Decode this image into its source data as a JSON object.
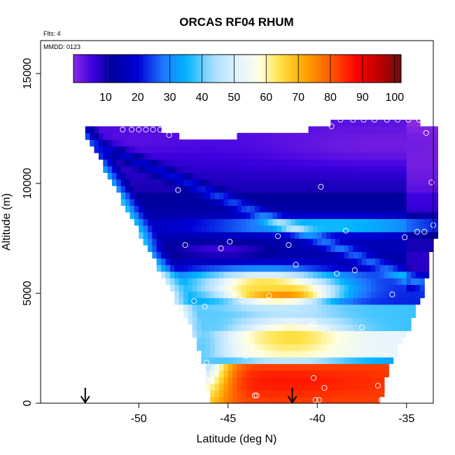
{
  "chart_data": {
    "type": "heatmap",
    "title": "ORCAS RF04 RHUM",
    "xlabel": "Latitude (deg N)",
    "ylabel": "Altitude (m)",
    "xlim": [
      -55.5,
      -33.5
    ],
    "ylim": [
      0,
      16500
    ],
    "x_ticks": [
      -50,
      -45,
      -40,
      -35
    ],
    "x_tick_labels": [
      "-50",
      "-45",
      "-40",
      "-35"
    ],
    "y_ticks": [
      0,
      5000,
      10000,
      15000
    ],
    "y_tick_labels": [
      "0",
      "5000",
      "10000",
      "15000"
    ],
    "annotations": {
      "flights": "Flts: 4",
      "date": "MMDD: 0123"
    },
    "colorbar": {
      "range": [
        0,
        102
      ],
      "ticks": [
        10,
        20,
        30,
        40,
        50,
        60,
        70,
        80,
        90,
        100
      ],
      "tick_labels": [
        "10",
        "20",
        "30",
        "40",
        "50",
        "60",
        "70",
        "80",
        "90",
        "100"
      ],
      "stops": [
        {
          "v": 0,
          "c": "#8a2be2"
        },
        {
          "v": 6,
          "c": "#3d00e0"
        },
        {
          "v": 12,
          "c": "#00009c"
        },
        {
          "v": 20,
          "c": "#0000d8"
        },
        {
          "v": 28,
          "c": "#1e78ff"
        },
        {
          "v": 35,
          "c": "#00b4ff"
        },
        {
          "v": 44,
          "c": "#aee0ff"
        },
        {
          "v": 52,
          "c": "#e6f4ff"
        },
        {
          "v": 58,
          "c": "#ffffe0"
        },
        {
          "v": 64,
          "c": "#ffe34a"
        },
        {
          "v": 72,
          "c": "#ffa500"
        },
        {
          "v": 80,
          "c": "#ff5a00"
        },
        {
          "v": 88,
          "c": "#ff0000"
        },
        {
          "v": 95,
          "c": "#c00000"
        },
        {
          "v": 102,
          "c": "#6b0f0f"
        }
      ]
    },
    "boundary": {
      "lat": [
        -53.0,
        -52.0,
        -51.0,
        -50.0,
        -49.0,
        -48.0,
        -47.0,
        -46.5,
        -46.0,
        -45.0,
        -44.0,
        -43.0,
        -42.0,
        -41.0,
        -40.0,
        -39.0,
        -38.0,
        -37.0,
        -36.5,
        -36.0,
        -35.0,
        -34.0,
        -33.5
      ],
      "top": [
        12500,
        12500,
        12500,
        12500,
        12500,
        12200,
        12000,
        12000,
        12000,
        12100,
        12200,
        12300,
        12300,
        12400,
        12500,
        12800,
        12900,
        12900,
        12900,
        12900,
        12900,
        12700,
        12600
      ],
      "bottom": [
        12300,
        10800,
        9300,
        7800,
        6300,
        4800,
        3300,
        2300,
        0,
        0,
        0,
        0,
        0,
        0,
        0,
        0,
        0,
        0,
        0,
        1600,
        3200,
        5200,
        7500
      ]
    },
    "features": [
      {
        "lat": -42.2,
        "alt": 5000,
        "w_lat": 2.6,
        "w_alt": 420,
        "v": 90
      },
      {
        "lat": -43.0,
        "alt": 5400,
        "w_lat": 4.0,
        "w_alt": 700,
        "v": 65
      },
      {
        "lat": -41.5,
        "alt": 3000,
        "w_lat": 3.0,
        "w_alt": 900,
        "v": 65
      },
      {
        "lat": -42.0,
        "alt": 1000,
        "w_lat": 6.0,
        "w_alt": 700,
        "v": 86
      },
      {
        "lat": -39.0,
        "alt": 8100,
        "w_lat": 7.0,
        "w_alt": 350,
        "v": 40
      },
      {
        "lat": -46.5,
        "alt": 2500,
        "w_lat": 1.5,
        "w_alt": 2500,
        "v": 40
      },
      {
        "lat": -36.0,
        "alt": 11800,
        "w_lat": 8.0,
        "w_alt": 1000,
        "v": 2
      },
      {
        "lat": -50.0,
        "alt": 12000,
        "w_lat": 4.0,
        "w_alt": 700,
        "v": 4
      },
      {
        "lat": -45.5,
        "alt": 7000,
        "w_lat": 3.0,
        "w_alt": 400,
        "v": 6
      }
    ],
    "observations": [
      {
        "lat": -50.9,
        "alt": 12450
      },
      {
        "lat": -50.4,
        "alt": 12450
      },
      {
        "lat": -50.0,
        "alt": 12450
      },
      {
        "lat": -49.6,
        "alt": 12450
      },
      {
        "lat": -49.2,
        "alt": 12450
      },
      {
        "lat": -48.8,
        "alt": 12450
      },
      {
        "lat": -48.4,
        "alt": 12550
      },
      {
        "lat": -48.3,
        "alt": 12200
      },
      {
        "lat": -47.8,
        "alt": 9700
      },
      {
        "lat": -47.4,
        "alt": 7200
      },
      {
        "lat": -46.9,
        "alt": 4650
      },
      {
        "lat": -46.3,
        "alt": 4400
      },
      {
        "lat": -45.4,
        "alt": 7050
      },
      {
        "lat": -44.9,
        "alt": 7350
      },
      {
        "lat": -44.2,
        "alt": 4700
      },
      {
        "lat": -44.0,
        "alt": 2150
      },
      {
        "lat": -43.2,
        "alt": 2300
      },
      {
        "lat": -42.7,
        "alt": 4900
      },
      {
        "lat": -42.2,
        "alt": 7600
      },
      {
        "lat": -41.6,
        "alt": 7200
      },
      {
        "lat": -41.2,
        "alt": 6300
      },
      {
        "lat": -40.3,
        "alt": 3700
      },
      {
        "lat": -40.2,
        "alt": 3600
      },
      {
        "lat": -39.8,
        "alt": 9850
      },
      {
        "lat": -39.5,
        "alt": 3300
      },
      {
        "lat": -39.2,
        "alt": 12600
      },
      {
        "lat": -38.9,
        "alt": 5900
      },
      {
        "lat": -38.4,
        "alt": 7850
      },
      {
        "lat": -37.9,
        "alt": 6050
      },
      {
        "lat": -37.5,
        "alt": 3450
      },
      {
        "lat": -38.7,
        "alt": 12900
      },
      {
        "lat": -38.0,
        "alt": 12900
      },
      {
        "lat": -37.4,
        "alt": 12900
      },
      {
        "lat": -36.8,
        "alt": 12900
      },
      {
        "lat": -36.1,
        "alt": 12900
      },
      {
        "lat": -35.5,
        "alt": 12900
      },
      {
        "lat": -34.9,
        "alt": 12900
      },
      {
        "lat": -34.3,
        "alt": 12900
      },
      {
        "lat": -33.9,
        "alt": 12300
      },
      {
        "lat": -33.6,
        "alt": 10050
      },
      {
        "lat": -33.5,
        "alt": 8100
      },
      {
        "lat": -34.0,
        "alt": 7800
      },
      {
        "lat": -34.4,
        "alt": 7800
      },
      {
        "lat": -35.1,
        "alt": 7550
      },
      {
        "lat": -35.8,
        "alt": 4950
      },
      {
        "lat": -36.2,
        "alt": 2350
      },
      {
        "lat": -36.6,
        "alt": 800
      },
      {
        "lat": -36.4,
        "alt": 150
      },
      {
        "lat": -39.6,
        "alt": 700
      },
      {
        "lat": -40.2,
        "alt": 1150
      },
      {
        "lat": -39.9,
        "alt": 150
      },
      {
        "lat": -40.1,
        "alt": 150
      },
      {
        "lat": -43.4,
        "alt": 350
      },
      {
        "lat": -43.5,
        "alt": 350
      },
      {
        "lat": -46.2,
        "alt": 1850
      },
      {
        "lat": -46.4,
        "alt": 150
      }
    ],
    "markers": [
      {
        "lat": -53.0,
        "alt": 0
      },
      {
        "lat": -41.4,
        "alt": 0
      }
    ]
  }
}
